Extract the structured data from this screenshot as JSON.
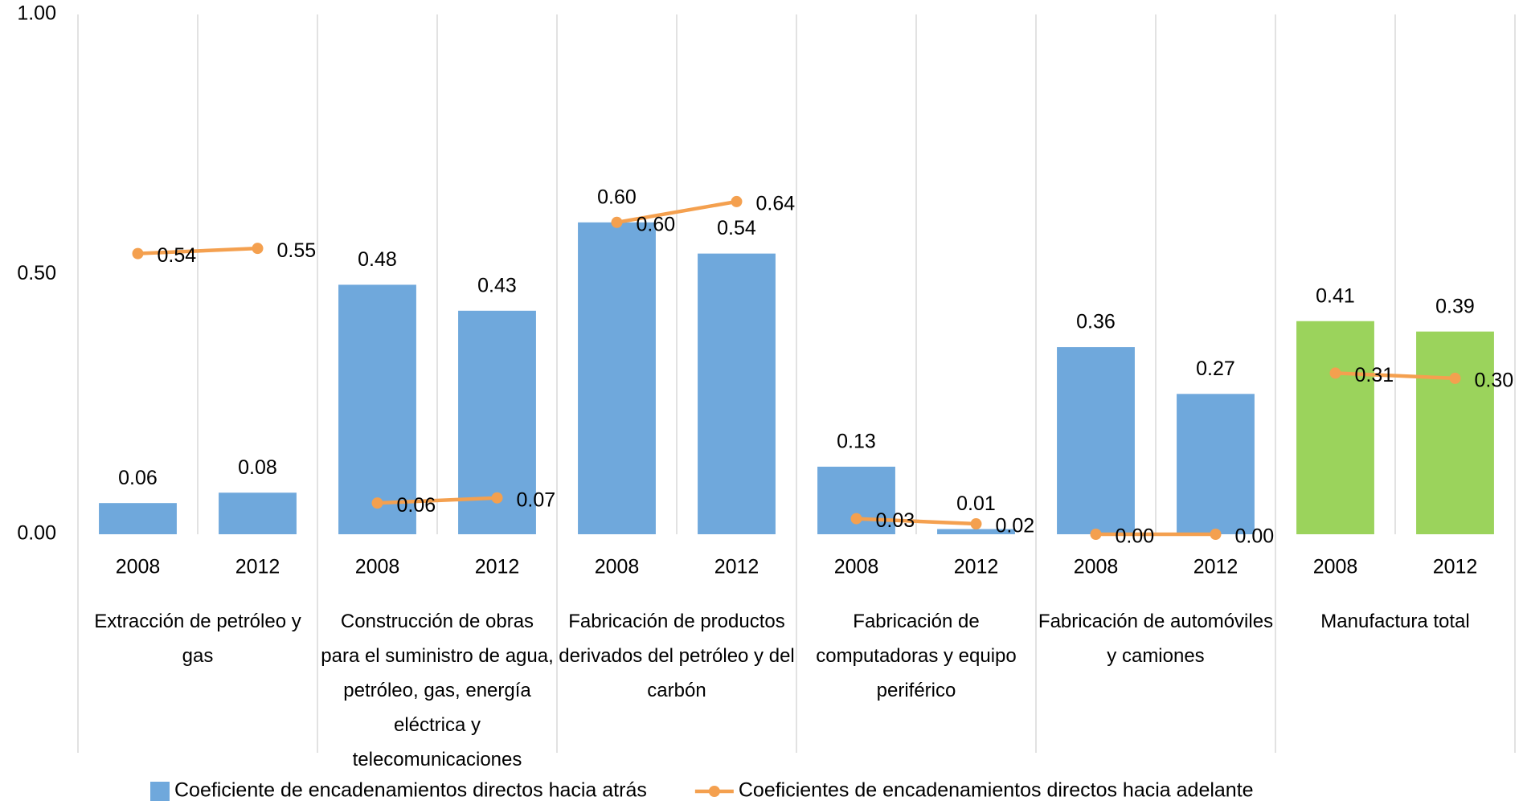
{
  "chart_data": {
    "type": "bar",
    "categories": [
      "2008",
      "2012",
      "2008",
      "2012",
      "2008",
      "2012",
      "2008",
      "2012",
      "2008",
      "2012",
      "2008",
      "2012"
    ],
    "groups": [
      "Extracción de petróleo y gas",
      "Construcción de obras para el suministro de agua, petróleo, gas, energía eléctrica y telecomunicaciones",
      "Fabricación de productos derivados del petróleo y del carbón",
      "Fabricación de computadoras y equipo periférico",
      "Fabricación de automóviles y camiones",
      "Manufactura total"
    ],
    "series": [
      {
        "name": "Coeficiente de encadenamientos directos hacia atrás",
        "type": "bar",
        "color": "#6fa8dc",
        "colors": [
          "#6fa8dc",
          "#6fa8dc",
          "#6fa8dc",
          "#6fa8dc",
          "#6fa8dc",
          "#6fa8dc",
          "#6fa8dc",
          "#6fa8dc",
          "#6fa8dc",
          "#6fa8dc",
          "#9bd35c",
          "#9bd35c"
        ],
        "values": [
          0.06,
          0.08,
          0.48,
          0.43,
          0.6,
          0.54,
          0.13,
          0.01,
          0.36,
          0.27,
          0.41,
          0.39
        ],
        "value_labels": [
          "0.06",
          "0.08",
          "0.48",
          "0.43",
          "0.60",
          "0.54",
          "0.13",
          "0.01",
          "0.36",
          "0.27",
          "0.41",
          "0.39"
        ]
      },
      {
        "name": "Coeficientes de encadenamientos directos hacia adelante",
        "type": "line",
        "color": "#f4a04f",
        "values": [
          0.54,
          0.55,
          0.06,
          0.07,
          0.6,
          0.64,
          0.03,
          0.02,
          0.0,
          0.0,
          0.31,
          0.3
        ],
        "value_labels": [
          "0.54",
          "0.55",
          "0.06",
          "0.07",
          "0.60",
          "0.64",
          "0.03",
          "0.02",
          "0.00",
          "0.00",
          "0.31",
          "0.30"
        ]
      }
    ],
    "ylim": [
      0,
      1
    ],
    "yticks": [
      {
        "value": 0,
        "label": "0.00"
      },
      {
        "value": 0.5,
        "label": "0.50"
      },
      {
        "value": 1,
        "label": "1.00"
      }
    ],
    "grid": false,
    "legend": "bottom"
  }
}
